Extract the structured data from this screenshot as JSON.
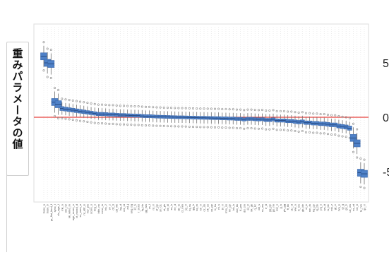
{
  "ylabel": "重みパラメータの値",
  "chart_data": {
    "type": "box",
    "title": "",
    "xlabel": "",
    "ylabel": "重みパラメータの値",
    "ylim": [
      -7,
      7
    ],
    "yticks": [
      5,
      0,
      -5
    ],
    "ytick_labels": [
      "5",
      "0",
      "-5"
    ],
    "reference_line": {
      "y": 0,
      "color": "#e8413c"
    },
    "grid": true,
    "box_color": "#4f81c7",
    "categories": [
      "base_a",
      "base_b",
      "gr_flat_kind_f",
      "sync_l",
      "cls_age_l",
      "mk_n",
      "mk_n2",
      "nk_wind_m",
      "age_score_n",
      "ct_mood_d",
      "sc_num_a",
      "nt_attr_k",
      "fav_pix",
      "score_s",
      "brg_s",
      "bbb_nn",
      "conn_w",
      "hh_2",
      "vv_z",
      "ctt_0",
      "dd_wk",
      "kg_d",
      "cnt_nt",
      "ad_j",
      "ang_bg",
      "zz_h",
      "r_sens",
      "fq_hh",
      "gg_ww",
      "zs_l",
      "rd_rr",
      "sf_pp",
      "sn_01",
      "et_pk",
      "bb_kl",
      "xx_h",
      "ee_d",
      "att_ts",
      "ct_mm",
      "yy_rr",
      "tq_ss",
      "gg_h",
      "sq_m",
      "hh_rr",
      "cz_ds",
      "nk_ss",
      "xx_pp",
      "tt_hs",
      "rk_s",
      "bt_rr",
      "mm_ss",
      "lm_pp",
      "bb_h",
      "ww_kk",
      "lf_pm",
      "dd_cm",
      "ss_tr",
      "kk_gk",
      "q_kc",
      "dd_s",
      "sc_ws",
      "rr_tt",
      "gq_pp",
      "pp_nn",
      "ww_s",
      "jj_h",
      "ph_gg",
      "ff_kk",
      "uu_ct",
      "ww_n",
      "tt_nw",
      "gk_bb",
      "ol_tr",
      "nm_rk",
      "kq_pp",
      "lq_bb",
      "pq_s",
      "ws_tt",
      "rs_bb",
      "mk_z",
      "gf_rr",
      "hm_k",
      "gl_g",
      "gs_b",
      "ub_ow",
      "ex_nt",
      "bb_tl",
      "tu_hm",
      "qs_rr"
    ],
    "values": [
      5.6,
      5.0,
      4.9,
      1.4,
      1.2,
      0.8,
      0.75,
      0.7,
      0.65,
      0.6,
      0.55,
      0.5,
      0.45,
      0.4,
      0.35,
      0.3,
      0.3,
      0.28,
      0.25,
      0.25,
      0.22,
      0.2,
      0.2,
      0.18,
      0.17,
      0.15,
      0.15,
      0.12,
      0.1,
      0.1,
      0.08,
      0.06,
      0.05,
      0.04,
      0.03,
      0.02,
      0.01,
      0.0,
      0.0,
      -0.01,
      -0.02,
      -0.03,
      -0.04,
      -0.05,
      -0.05,
      -0.06,
      -0.07,
      -0.08,
      -0.08,
      -0.1,
      -0.1,
      -0.12,
      -0.12,
      -0.15,
      -0.15,
      -0.2,
      -0.15,
      -0.15,
      -0.18,
      -0.2,
      -0.18,
      -0.25,
      -0.25,
      -0.2,
      -0.3,
      -0.3,
      -0.3,
      -0.35,
      -0.35,
      -0.4,
      -0.45,
      -0.4,
      -0.5,
      -0.5,
      -0.55,
      -0.55,
      -0.6,
      -0.6,
      -0.65,
      -0.7,
      -0.7,
      -0.8,
      -0.85,
      -0.9,
      -1.0,
      -1.9,
      -2.4,
      -5.1,
      -5.2
    ]
  }
}
